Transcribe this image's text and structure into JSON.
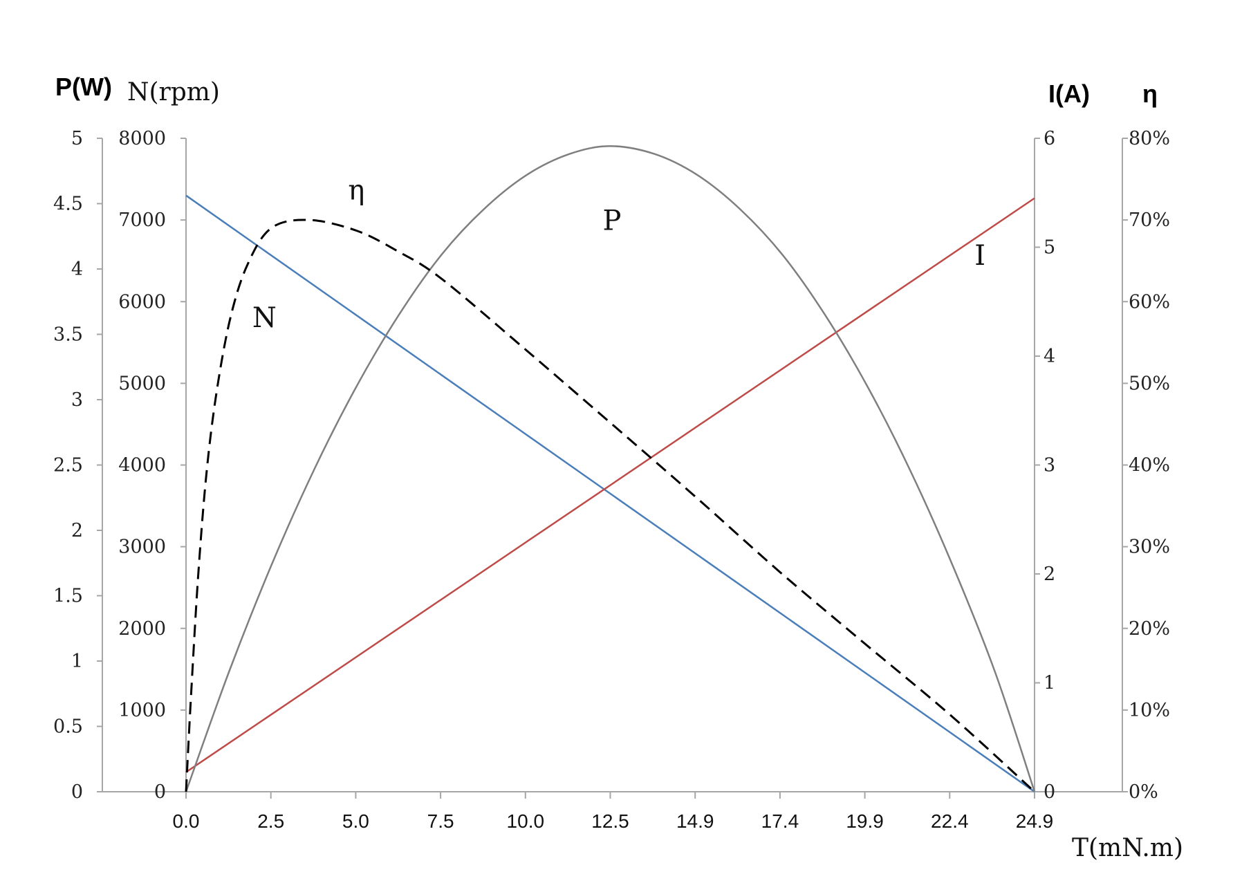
{
  "chart_data": {
    "type": "line",
    "title": "",
    "x": {
      "label": "T(mN.m)",
      "ticks": [
        "0.0",
        "2.5",
        "5.0",
        "7.5",
        "10.0",
        "12.5",
        "14.9",
        "17.4",
        "19.9",
        "22.4",
        "24.9"
      ],
      "range": [
        0,
        24.9
      ]
    },
    "axes": {
      "P": {
        "title": "P(W)",
        "range": [
          0,
          5
        ],
        "ticks": [
          "0",
          "0.5",
          "1",
          "1.5",
          "2",
          "2.5",
          "3",
          "3.5",
          "4",
          "4.5",
          "5"
        ]
      },
      "N": {
        "title": "N(rpm)",
        "range": [
          0,
          8000
        ],
        "ticks": [
          "0",
          "1000",
          "2000",
          "3000",
          "4000",
          "5000",
          "6000",
          "7000",
          "8000"
        ]
      },
      "I": {
        "title": "I(A)",
        "range": [
          0,
          6
        ],
        "ticks": [
          "0",
          "1",
          "2",
          "3",
          "4",
          "5",
          "6"
        ]
      },
      "eta": {
        "title": "η",
        "range": [
          0,
          0.8
        ],
        "ticks": [
          "0%",
          "10%",
          "20%",
          "30%",
          "40%",
          "50%",
          "60%",
          "70%",
          "80%"
        ]
      }
    },
    "series": [
      {
        "name": "N",
        "axis": "N",
        "color": "#4a7ebb",
        "style": "solid",
        "points": [
          [
            0,
            7300
          ],
          [
            24.9,
            0
          ]
        ]
      },
      {
        "name": "I",
        "axis": "I",
        "color": "#be4b48",
        "style": "solid",
        "points": [
          [
            0,
            0.18
          ],
          [
            24.9,
            5.45
          ]
        ]
      },
      {
        "name": "P",
        "axis": "P",
        "color": "#7f7f7f",
        "style": "solid",
        "points": [
          [
            0,
            0
          ],
          [
            1.25,
            0.91
          ],
          [
            2.5,
            1.73
          ],
          [
            3.75,
            2.46
          ],
          [
            5.0,
            3.1
          ],
          [
            6.25,
            3.65
          ],
          [
            7.5,
            4.11
          ],
          [
            8.75,
            4.46
          ],
          [
            10.0,
            4.72
          ],
          [
            11.25,
            4.88
          ],
          [
            12.45,
            4.94
          ],
          [
            13.75,
            4.88
          ],
          [
            15.0,
            4.72
          ],
          [
            16.25,
            4.46
          ],
          [
            17.5,
            4.11
          ],
          [
            18.75,
            3.65
          ],
          [
            20.0,
            3.1
          ],
          [
            21.25,
            2.46
          ],
          [
            22.5,
            1.73
          ],
          [
            23.75,
            0.91
          ],
          [
            24.9,
            0
          ]
        ]
      },
      {
        "name": "η",
        "axis": "eta",
        "color": "#000000",
        "style": "dashed",
        "points": [
          [
            0,
            0
          ],
          [
            0.15,
            0.12
          ],
          [
            0.35,
            0.26
          ],
          [
            0.6,
            0.39
          ],
          [
            0.9,
            0.49
          ],
          [
            1.3,
            0.58
          ],
          [
            1.8,
            0.645
          ],
          [
            2.5,
            0.69
          ],
          [
            3.6,
            0.7
          ],
          [
            5.0,
            0.687
          ],
          [
            6.2,
            0.662
          ],
          [
            7.5,
            0.628
          ],
          [
            10.0,
            0.54
          ],
          [
            12.5,
            0.45
          ],
          [
            14.9,
            0.363
          ],
          [
            17.4,
            0.27
          ],
          [
            19.9,
            0.182
          ],
          [
            22.4,
            0.095
          ],
          [
            24.9,
            0
          ]
        ]
      }
    ],
    "annotations": [
      {
        "text": "N",
        "x": 2.3,
        "y_axis": "N",
        "y": 5690
      },
      {
        "text": "η",
        "x": 5.0,
        "y_axis": "eta",
        "y": 0.725
      },
      {
        "text": "P",
        "x": 12.5,
        "y_axis": "N",
        "y": 6880
      },
      {
        "text": "I",
        "x": 23.3,
        "y_axis": "N",
        "y": 6450
      }
    ],
    "grid": false,
    "legend": "none"
  }
}
